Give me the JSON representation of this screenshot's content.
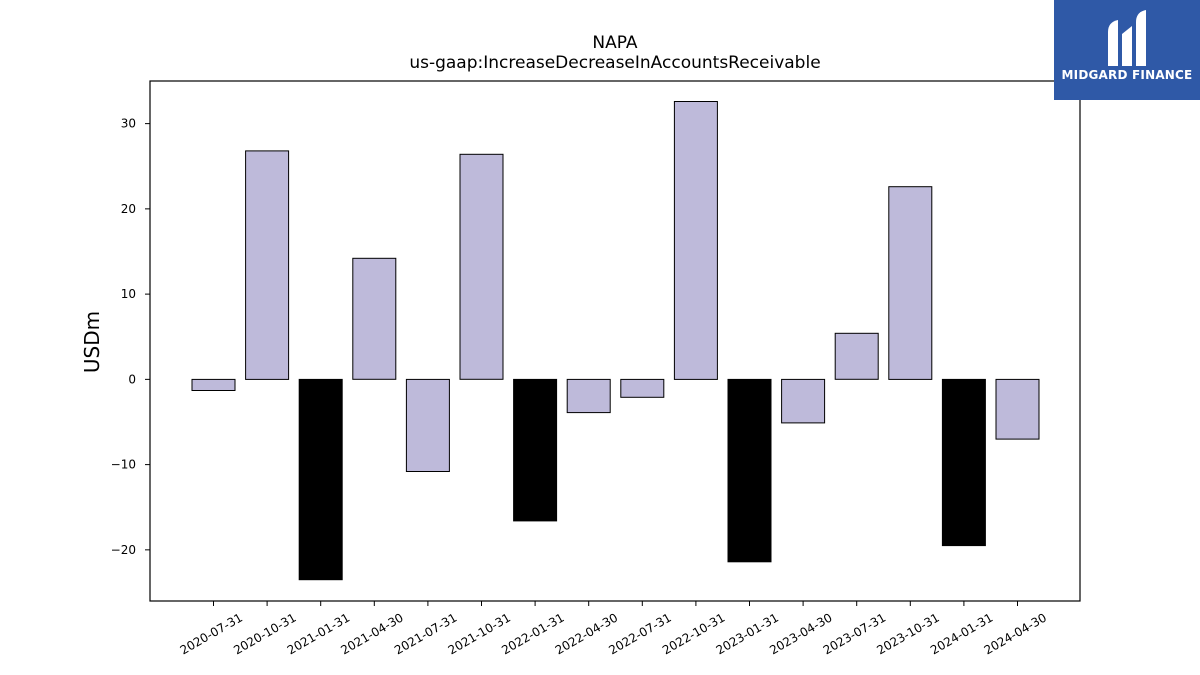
{
  "chart_data": {
    "type": "bar",
    "title": "NAPA",
    "subtitle": "us-gaap:IncreaseDecreaseInAccountsReceivable",
    "ylabel": "USDm",
    "xlabel": "",
    "ylim": [
      -26,
      35
    ],
    "yticks": [
      -20,
      -10,
      0,
      10,
      20,
      30
    ],
    "ytick_labels": [
      "−20",
      "−10",
      "0",
      "10",
      "20",
      "30"
    ],
    "categories": [
      "2020-07-31",
      "2020-10-31",
      "2021-01-31",
      "2021-04-30",
      "2021-07-31",
      "2021-10-31",
      "2022-01-31",
      "2022-04-30",
      "2022-07-31",
      "2022-10-31",
      "2023-01-31",
      "2023-04-30",
      "2023-07-31",
      "2023-10-31",
      "2024-01-31",
      "2024-04-30"
    ],
    "values": [
      -1.3,
      26.8,
      -23.5,
      14.2,
      -10.8,
      26.4,
      -16.6,
      -3.9,
      -2.1,
      32.6,
      -21.4,
      -5.1,
      5.4,
      22.6,
      -19.5,
      -7.0
    ],
    "highlight": [
      false,
      false,
      true,
      false,
      false,
      false,
      true,
      false,
      false,
      false,
      true,
      false,
      false,
      false,
      true,
      false
    ],
    "colors": {
      "bar": "#bebada",
      "highlight": "#000000",
      "edge": "#000000"
    },
    "grid": false
  },
  "logo": {
    "text": "MIDGARD FINANCE",
    "background": "#2f59a7"
  }
}
